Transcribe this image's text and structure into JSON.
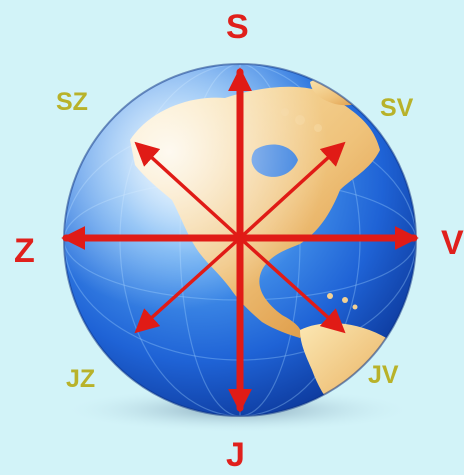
{
  "labels": {
    "north": "S",
    "south": "J",
    "west": "Z",
    "east": "V",
    "northwest": "SZ",
    "northeast": "SV",
    "southwest": "JZ",
    "southeast": "JV"
  },
  "colors": {
    "background": "#d2f3f8",
    "major_label": "#e0201c",
    "minor_label": "#b8b22a",
    "arrow": "#e01b16",
    "ocean": "#1f63d6",
    "land": "#f1c27a"
  },
  "icons": {
    "globe": "globe-icon",
    "arrows": "compass-arrows-icon"
  }
}
